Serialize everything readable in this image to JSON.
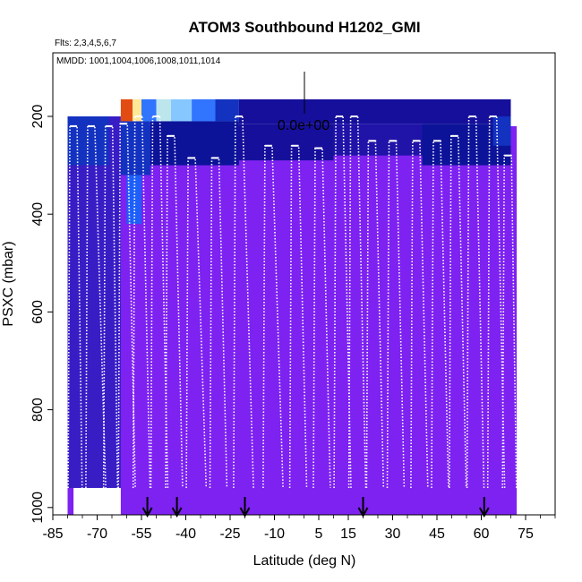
{
  "chart_data": {
    "type": "heatmap",
    "title": "ATOM3 Southbound H1202_GMI",
    "flights_label": "Flts: 2,3,4,5,6,7",
    "dates_label": "MMDD: 1001,1004,1006,1008,1011,1014",
    "xlabel": "Latitude (deg N)",
    "ylabel": "PSXC (mbar)",
    "xlim": [
      -85,
      85
    ],
    "ylim": [
      1015,
      70
    ],
    "y_inverted": true,
    "x_ticks": [
      -85,
      -70,
      -55,
      -40,
      -25,
      -10,
      5,
      15,
      30,
      45,
      60,
      75
    ],
    "x_tick_labels": [
      "-85",
      "-70",
      "-55",
      "-40",
      "-25",
      "-10",
      "5",
      "15",
      "30",
      "45",
      "60",
      "75"
    ],
    "y_ticks": [
      200,
      400,
      600,
      800,
      1000
    ],
    "y_tick_labels": [
      "200",
      "400",
      "600",
      "800",
      "1000"
    ],
    "scale_label": "0.0e+00",
    "arrow_latitudes": [
      -53,
      -43,
      -20,
      20,
      61
    ],
    "color_scale": [
      "#7b1fe6",
      "#3a1ec8",
      "#0a0a8c",
      "#1e64ff",
      "#9ad8ff",
      "#ffffc8",
      "#ffa000",
      "#d21e1e"
    ],
    "background_color": "#7d22f0",
    "coverage_lat": [
      -80,
      72
    ],
    "cells": [
      {
        "lat0": -80,
        "lat1": -62,
        "p0": 200,
        "p1": 960,
        "v": 0.15
      },
      {
        "lat0": -80,
        "lat1": -66,
        "p0": 200,
        "p1": 300,
        "v": 0.35
      },
      {
        "lat0": -62,
        "lat1": -58,
        "p0": 165,
        "p1": 210,
        "v": 0.95
      },
      {
        "lat0": -58,
        "lat1": -55,
        "p0": 165,
        "p1": 210,
        "v": 0.75
      },
      {
        "lat0": -55,
        "lat1": -50,
        "p0": 165,
        "p1": 210,
        "v": 0.45
      },
      {
        "lat0": -50,
        "lat1": -45,
        "p0": 165,
        "p1": 210,
        "v": 0.62
      },
      {
        "lat0": -45,
        "lat1": -38,
        "p0": 165,
        "p1": 210,
        "v": 0.55
      },
      {
        "lat0": -38,
        "lat1": -30,
        "p0": 165,
        "p1": 210,
        "v": 0.45
      },
      {
        "lat0": -30,
        "lat1": -22,
        "p0": 165,
        "p1": 210,
        "v": 0.35
      },
      {
        "lat0": -22,
        "lat1": 70,
        "p0": 165,
        "p1": 215,
        "v": 0.25
      },
      {
        "lat0": -62,
        "lat1": -52,
        "p0": 210,
        "p1": 320,
        "v": 0.35
      },
      {
        "lat0": -60,
        "lat1": -55,
        "p0": 320,
        "p1": 420,
        "v": 0.42
      },
      {
        "lat0": -52,
        "lat1": -22,
        "p0": 210,
        "p1": 300,
        "v": 0.3
      },
      {
        "lat0": -22,
        "lat1": 10,
        "p0": 215,
        "p1": 290,
        "v": 0.25
      },
      {
        "lat0": 10,
        "lat1": 40,
        "p0": 215,
        "p1": 280,
        "v": 0.22
      },
      {
        "lat0": 40,
        "lat1": 70,
        "p0": 215,
        "p1": 300,
        "v": 0.3
      },
      {
        "lat0": 64,
        "lat1": 70,
        "p0": 200,
        "p1": 260,
        "v": 0.35
      }
    ],
    "profiles": [
      {
        "lat_top": -78,
        "p_top": 220,
        "lat_bottom": -76,
        "p_bottom": 960
      },
      {
        "lat_top": -72,
        "p_top": 220,
        "lat_bottom": -68,
        "p_bottom": 960
      },
      {
        "lat_top": -66,
        "p_top": 220,
        "lat_bottom": -64,
        "p_bottom": 960
      },
      {
        "lat_top": -61,
        "p_top": 215,
        "lat_bottom": -58,
        "p_bottom": 960
      },
      {
        "lat_top": -56,
        "p_top": 200,
        "lat_bottom": -53,
        "p_bottom": 960
      },
      {
        "lat_top": -50,
        "p_top": 200,
        "lat_bottom": -47,
        "p_bottom": 960
      },
      {
        "lat_top": -45,
        "p_top": 240,
        "lat_bottom": -42,
        "p_bottom": 960
      },
      {
        "lat_top": -38,
        "p_top": 285,
        "lat_bottom": -34,
        "p_bottom": 960
      },
      {
        "lat_top": -30,
        "p_top": 285,
        "lat_bottom": -27,
        "p_bottom": 960
      },
      {
        "lat_top": -22,
        "p_top": 200,
        "lat_bottom": -18,
        "p_bottom": 960
      },
      {
        "lat_top": -12,
        "p_top": 260,
        "lat_bottom": -8,
        "p_bottom": 960
      },
      {
        "lat_top": -3,
        "p_top": 260,
        "lat_bottom": 0,
        "p_bottom": 960
      },
      {
        "lat_top": 5,
        "p_top": 265,
        "lat_bottom": 8,
        "p_bottom": 960
      },
      {
        "lat_top": 12,
        "p_top": 200,
        "lat_bottom": 15,
        "p_bottom": 960
      },
      {
        "lat_top": 17,
        "p_top": 200,
        "lat_bottom": 20,
        "p_bottom": 960
      },
      {
        "lat_top": 23,
        "p_top": 250,
        "lat_bottom": 26,
        "p_bottom": 960
      },
      {
        "lat_top": 30,
        "p_top": 250,
        "lat_bottom": 33,
        "p_bottom": 960
      },
      {
        "lat_top": 38,
        "p_top": 250,
        "lat_bottom": 41,
        "p_bottom": 960
      },
      {
        "lat_top": 45,
        "p_top": 250,
        "lat_bottom": 48,
        "p_bottom": 960
      },
      {
        "lat_top": 51,
        "p_top": 240,
        "lat_bottom": 54,
        "p_bottom": 960
      },
      {
        "lat_top": 57,
        "p_top": 200,
        "lat_bottom": 60,
        "p_bottom": 960
      },
      {
        "lat_top": 64,
        "p_top": 200,
        "lat_bottom": 67,
        "p_bottom": 960
      },
      {
        "lat_top": 69,
        "p_top": 280,
        "lat_bottom": 71,
        "p_bottom": 960
      }
    ]
  }
}
